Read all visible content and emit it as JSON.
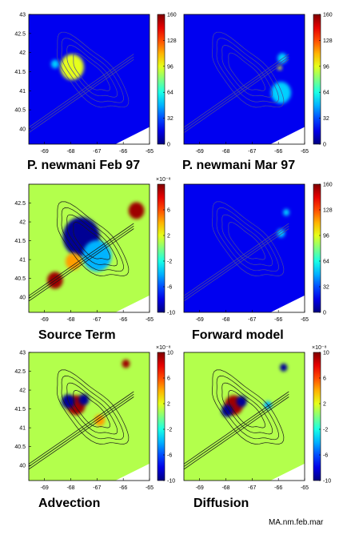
{
  "figure_label": "MA.nm.feb.mar",
  "chart_data": [
    {
      "type": "heatmap",
      "panel": "top-left",
      "caption": "P. newmani  Feb 97",
      "xticks": [
        "-69",
        "-68",
        "-67",
        "-66",
        "-65"
      ],
      "yticks": [
        "43",
        "42.5",
        "42",
        "41.5",
        "41",
        "40.5",
        "40"
      ],
      "xlim": [
        -69.6,
        -65
      ],
      "ylim": [
        39.6,
        43
      ],
      "colorbar": {
        "ticks": [
          "160",
          "128",
          "96",
          "64",
          "32",
          "0"
        ],
        "range": [
          0,
          160
        ],
        "exponent": ""
      },
      "background": "low",
      "features": [
        {
          "kind": "blob",
          "x": -67.92,
          "y": 41.55,
          "level": "high",
          "size": 0.22
        },
        {
          "kind": "blob",
          "x": -67.95,
          "y": 41.62,
          "level": "mid",
          "size": 0.45
        },
        {
          "kind": "blob",
          "x": -68.6,
          "y": 41.7,
          "level": "lowmid",
          "size": 0.15
        }
      ]
    },
    {
      "type": "heatmap",
      "panel": "top-right",
      "caption": "P. newmani  Mar 97",
      "xticks": [
        "-69",
        "-68",
        "-67",
        "-66",
        "-65"
      ],
      "yticks": [],
      "xlim": [
        -69.6,
        -65
      ],
      "ylim": [
        39.6,
        43
      ],
      "colorbar": {
        "ticks": [
          "160",
          "128",
          "96",
          "64",
          "32",
          "0"
        ],
        "range": [
          0,
          160
        ],
        "exponent": ""
      },
      "background": "low",
      "features": [
        {
          "kind": "blob",
          "x": -65.85,
          "y": 41.85,
          "level": "lowmid",
          "size": 0.18
        },
        {
          "kind": "blob",
          "x": -65.95,
          "y": 41.6,
          "level": "mid",
          "size": 0.08
        },
        {
          "kind": "blob",
          "x": -65.9,
          "y": 40.95,
          "level": "lowmid",
          "size": 0.38
        }
      ]
    },
    {
      "type": "heatmap",
      "panel": "mid-left",
      "caption": "Source Term",
      "xticks": [
        "-69",
        "-68",
        "-67",
        "-66",
        "-65"
      ],
      "yticks": [
        "42.5",
        "42",
        "41.5",
        "41",
        "40.5",
        "40"
      ],
      "xlim": [
        -69.6,
        -65
      ],
      "ylim": [
        39.6,
        43
      ],
      "colorbar": {
        "ticks": [
          "6",
          "2",
          "-2",
          "-6",
          "-10"
        ],
        "range": [
          -10,
          10
        ],
        "exponent": "×10⁻⁸"
      },
      "background": "zero",
      "features": [
        {
          "kind": "blob",
          "x": -67.6,
          "y": 41.6,
          "level": "min",
          "size": 0.7
        },
        {
          "kind": "blob",
          "x": -67.0,
          "y": 41.1,
          "level": "neg",
          "size": 0.55
        },
        {
          "kind": "blob",
          "x": -65.5,
          "y": 42.3,
          "level": "max",
          "size": 0.3
        },
        {
          "kind": "blob",
          "x": -68.6,
          "y": 40.45,
          "level": "max",
          "size": 0.3
        },
        {
          "kind": "blob",
          "x": -67.9,
          "y": 40.95,
          "level": "pos",
          "size": 0.3
        }
      ]
    },
    {
      "type": "heatmap",
      "panel": "mid-right",
      "caption": "Forward model",
      "xticks": [
        "-69",
        "-68",
        "-67",
        "-66",
        "-65"
      ],
      "yticks": [],
      "xlim": [
        -69.6,
        -65
      ],
      "ylim": [
        39.6,
        43
      ],
      "colorbar": {
        "ticks": [
          "160",
          "128",
          "96",
          "64",
          "32",
          "0"
        ],
        "range": [
          0,
          160
        ],
        "exponent": ""
      },
      "background": "low",
      "features": [
        {
          "kind": "blob",
          "x": -65.9,
          "y": 41.7,
          "level": "lowmid",
          "size": 0.15
        },
        {
          "kind": "blob",
          "x": -65.7,
          "y": 42.25,
          "level": "lowmid",
          "size": 0.12
        }
      ]
    },
    {
      "type": "heatmap",
      "panel": "bottom-left",
      "caption": "Advection",
      "xticks": [
        "-69",
        "-68",
        "-67",
        "-66",
        "-65"
      ],
      "yticks": [
        "43",
        "42.5",
        "42",
        "41.5",
        "41",
        "40.5",
        "40"
      ],
      "xlim": [
        -69.6,
        -65
      ],
      "ylim": [
        39.6,
        43
      ],
      "colorbar": {
        "ticks": [
          "10",
          "6",
          "2",
          "-2",
          "-6",
          "-10"
        ],
        "range": [
          -10,
          10
        ],
        "exponent": "×10⁻⁸"
      },
      "background": "zero",
      "features": [
        {
          "kind": "blob",
          "x": -67.8,
          "y": 41.6,
          "level": "max",
          "size": 0.35
        },
        {
          "kind": "blob",
          "x": -68.1,
          "y": 41.7,
          "level": "min",
          "size": 0.25
        },
        {
          "kind": "blob",
          "x": -67.5,
          "y": 41.75,
          "level": "min",
          "size": 0.2
        },
        {
          "kind": "blob",
          "x": -65.9,
          "y": 42.7,
          "level": "max",
          "size": 0.15
        },
        {
          "kind": "blob",
          "x": -66.9,
          "y": 41.2,
          "level": "pos",
          "size": 0.2
        }
      ]
    },
    {
      "type": "heatmap",
      "panel": "bottom-right",
      "caption": "Diffusion",
      "xticks": [
        "-69",
        "-68",
        "-67",
        "-66",
        "-65"
      ],
      "yticks": [],
      "xlim": [
        -69.6,
        -65
      ],
      "ylim": [
        39.6,
        43
      ],
      "colorbar": {
        "ticks": [
          "10",
          "6",
          "2",
          "-2",
          "-6",
          "-10"
        ],
        "range": [
          -10,
          10
        ],
        "exponent": "×10⁻⁸"
      },
      "background": "zero",
      "features": [
        {
          "kind": "blob",
          "x": -67.7,
          "y": 41.6,
          "level": "max",
          "size": 0.35
        },
        {
          "kind": "blob",
          "x": -67.95,
          "y": 41.45,
          "level": "min",
          "size": 0.22
        },
        {
          "kind": "blob",
          "x": -67.4,
          "y": 41.7,
          "level": "min",
          "size": 0.2
        },
        {
          "kind": "blob",
          "x": -65.8,
          "y": 42.6,
          "level": "min",
          "size": 0.14
        },
        {
          "kind": "blob",
          "x": -66.4,
          "y": 41.6,
          "level": "neg",
          "size": 0.15
        }
      ]
    }
  ]
}
